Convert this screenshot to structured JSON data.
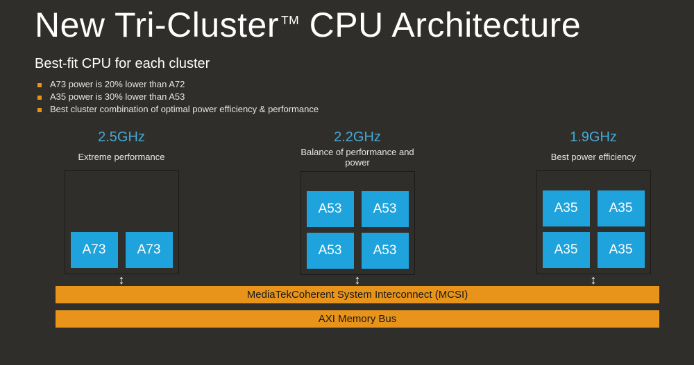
{
  "colors": {
    "background": "#302e2a",
    "title_color": "#ffffff",
    "text_color": "#e6e6e6",
    "bullet_square": "#e8941a",
    "accent_blue": "#45a9d6",
    "core_bg": "#1ea3dd",
    "core_text": "#ffffff",
    "cluster_border": "#1b1a18",
    "bar_bg": "#e8941a",
    "bar_text": "#1b1a18",
    "arrow_color": "#ffffff"
  },
  "typography": {
    "title_size": 50,
    "subtitle_size": 20,
    "bullet_size": 13,
    "freq_size": 20,
    "desc_size": 13,
    "core_size": 19,
    "bar_size": 15
  },
  "title_main": "New Tri-Cluster",
  "title_tm": "TM",
  "title_rest": " CPU Architecture",
  "subtitle": "Best-fit CPU for each cluster",
  "bullets": [
    "A73 power is 20% lower than A72",
    "A35 power is 30% lower than A53",
    "Best cluster combination of optimal power efficiency & performance"
  ],
  "clusters": [
    {
      "freq": "2.5GHz",
      "desc": "Extreme performance",
      "cores": [
        "A73",
        "A73"
      ]
    },
    {
      "freq": "2.2GHz",
      "desc": "Balance of performance and power",
      "cores": [
        "A53",
        "A53",
        "A53",
        "A53"
      ]
    },
    {
      "freq": "1.9GHz",
      "desc": "Best power efficiency",
      "cores": [
        "A35",
        "A35",
        "A35",
        "A35"
      ]
    }
  ],
  "arrow_glyph": "↕",
  "bars": [
    "MediaTekCoherent System Interconnect (MCSI)",
    "AXI Memory Bus"
  ]
}
